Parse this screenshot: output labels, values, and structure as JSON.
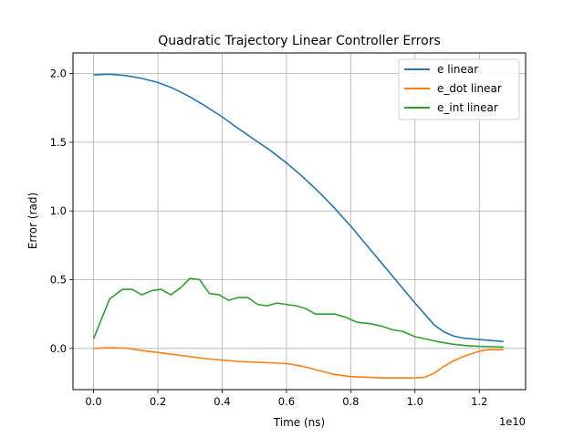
{
  "chart_data": {
    "type": "line",
    "title": "Quadratic Trajectory Linear Controller Errors",
    "xlabel": "Time (ns)",
    "ylabel": "Error (rad)",
    "x_offset_label": "1e10",
    "xlim": [
      -0.064,
      1.344
    ],
    "ylim": [
      -0.3,
      2.15
    ],
    "xticks": [
      0.0,
      0.2,
      0.4,
      0.6,
      0.8,
      1.0,
      1.2
    ],
    "xtick_labels": [
      "0.0",
      "0.2",
      "0.4",
      "0.6",
      "0.8",
      "1.0",
      "1.2"
    ],
    "yticks": [
      0.0,
      0.5,
      1.0,
      1.5,
      2.0
    ],
    "ytick_labels": [
      "0.0",
      "0.5",
      "1.0",
      "1.5",
      "2.0"
    ],
    "grid": true,
    "legend_position": "top-right",
    "series": [
      {
        "name": "e linear",
        "color": "#1f77b4",
        "x": [
          0.0,
          0.05,
          0.1,
          0.15,
          0.2,
          0.25,
          0.3,
          0.35,
          0.4,
          0.45,
          0.5,
          0.55,
          0.6,
          0.65,
          0.7,
          0.75,
          0.8,
          0.85,
          0.9,
          0.95,
          1.0,
          1.03,
          1.06,
          1.09,
          1.12,
          1.15,
          1.2,
          1.25,
          1.275
        ],
        "values": [
          1.99,
          1.995,
          1.985,
          1.965,
          1.935,
          1.89,
          1.83,
          1.76,
          1.685,
          1.6,
          1.52,
          1.44,
          1.35,
          1.25,
          1.14,
          1.02,
          0.89,
          0.75,
          0.61,
          0.47,
          0.33,
          0.25,
          0.17,
          0.12,
          0.09,
          0.075,
          0.065,
          0.055,
          0.05
        ]
      },
      {
        "name": "e_dot linear",
        "color": "#ff7f0e",
        "x": [
          0.0,
          0.05,
          0.1,
          0.15,
          0.2,
          0.25,
          0.3,
          0.35,
          0.4,
          0.45,
          0.5,
          0.55,
          0.6,
          0.65,
          0.7,
          0.75,
          0.8,
          0.85,
          0.9,
          0.95,
          1.0,
          1.03,
          1.06,
          1.09,
          1.12,
          1.15,
          1.18,
          1.2,
          1.225,
          1.25,
          1.275
        ],
        "values": [
          0.0,
          0.005,
          0.002,
          -0.015,
          -0.03,
          -0.045,
          -0.06,
          -0.075,
          -0.085,
          -0.095,
          -0.1,
          -0.105,
          -0.11,
          -0.13,
          -0.16,
          -0.19,
          -0.205,
          -0.21,
          -0.215,
          -0.215,
          -0.215,
          -0.21,
          -0.18,
          -0.13,
          -0.09,
          -0.06,
          -0.035,
          -0.02,
          -0.01,
          -0.01,
          -0.01
        ]
      },
      {
        "name": "e_int linear",
        "color": "#2ca02c",
        "x": [
          0.0,
          0.05,
          0.09,
          0.12,
          0.15,
          0.18,
          0.21,
          0.24,
          0.27,
          0.3,
          0.33,
          0.36,
          0.39,
          0.42,
          0.45,
          0.48,
          0.51,
          0.54,
          0.57,
          0.6,
          0.63,
          0.66,
          0.69,
          0.72,
          0.75,
          0.78,
          0.82,
          0.86,
          0.9,
          0.93,
          0.96,
          1.0,
          1.04,
          1.08,
          1.12,
          1.16,
          1.2,
          1.25,
          1.275
        ],
        "values": [
          0.07,
          0.36,
          0.43,
          0.43,
          0.39,
          0.42,
          0.43,
          0.39,
          0.44,
          0.51,
          0.5,
          0.4,
          0.39,
          0.35,
          0.37,
          0.37,
          0.32,
          0.31,
          0.33,
          0.32,
          0.31,
          0.29,
          0.25,
          0.25,
          0.25,
          0.23,
          0.19,
          0.18,
          0.16,
          0.135,
          0.125,
          0.085,
          0.065,
          0.045,
          0.03,
          0.02,
          0.015,
          0.012,
          0.01
        ]
      }
    ]
  }
}
